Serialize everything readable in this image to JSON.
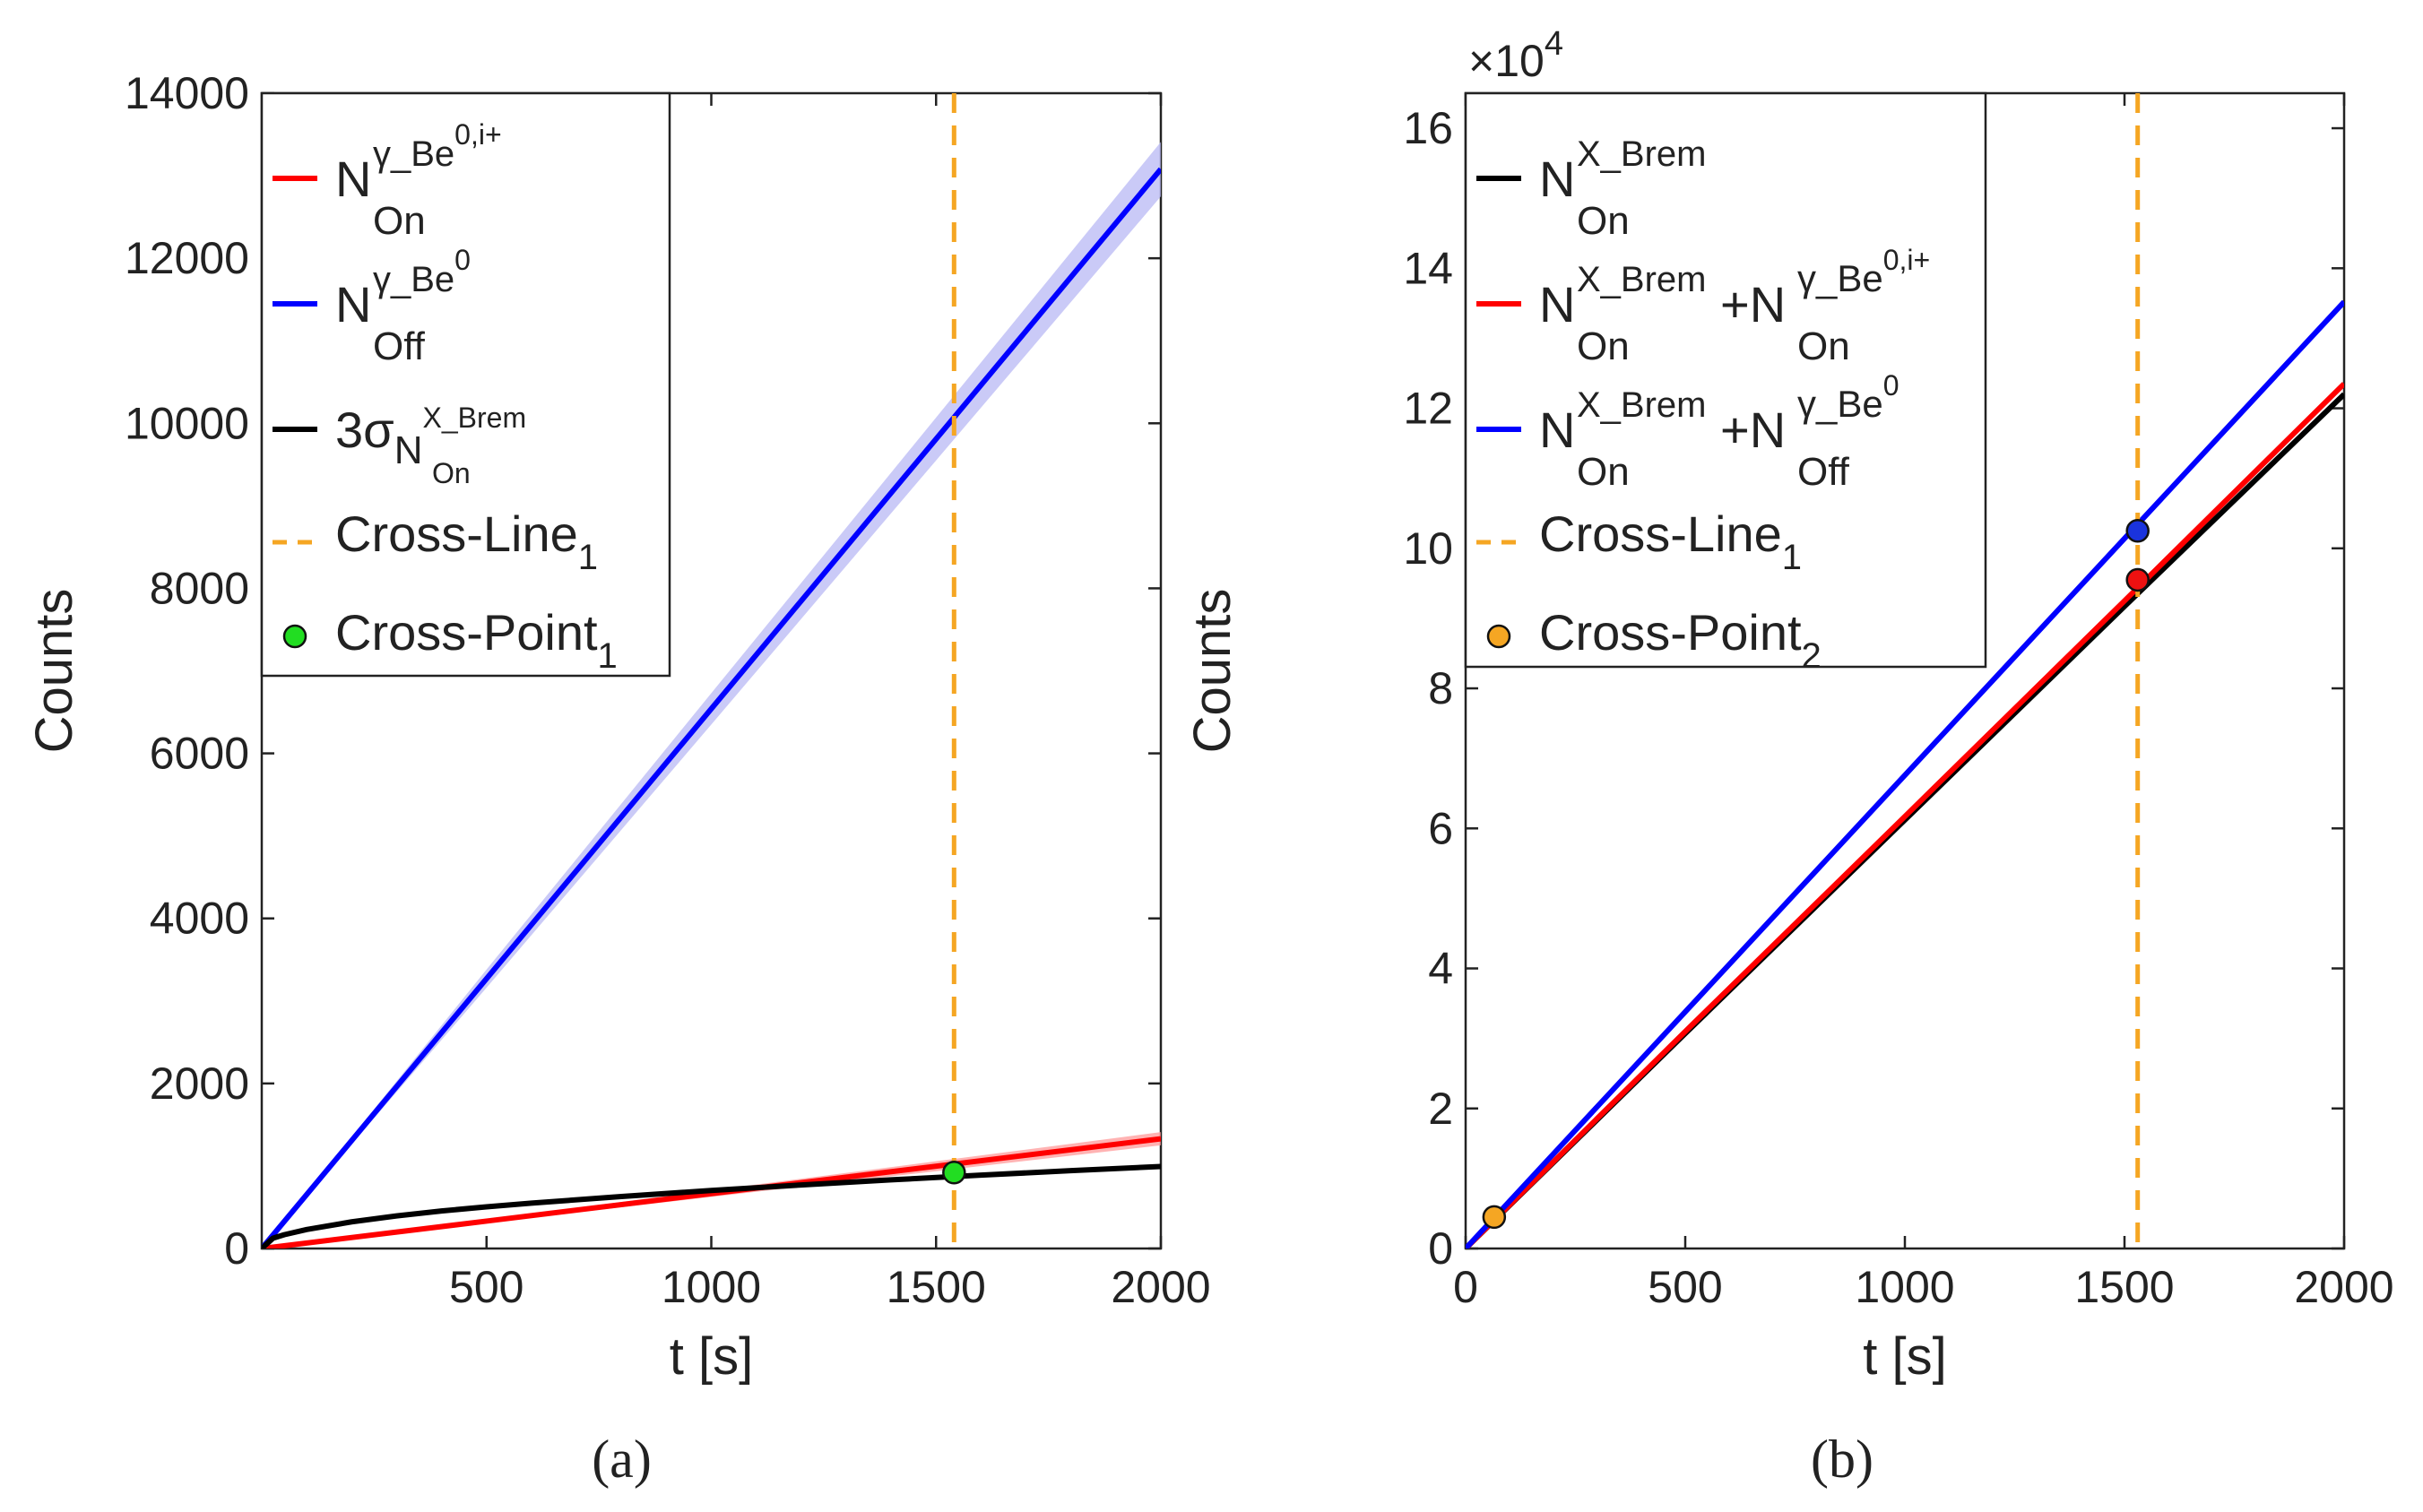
{
  "chart_data": [
    {
      "type": "line",
      "panel_label": "(a)",
      "xlabel": "t [s]",
      "ylabel": "Counts",
      "xlim": [
        0,
        2000
      ],
      "ylim": [
        0,
        14000
      ],
      "xticks": [
        500,
        1000,
        1500,
        2000
      ],
      "yticks": [
        0,
        2000,
        4000,
        6000,
        8000,
        10000,
        12000,
        14000
      ],
      "grid": false,
      "legend_position": "top-left",
      "series": [
        {
          "key": "red",
          "legend": {
            "base": "N",
            "sup": "γ_Be",
            "supsup": "0,i+",
            "sub": "On"
          },
          "color": "#ff0000",
          "band_color": "#ff9a9a",
          "x": [
            0,
            500,
            1000,
            1500,
            2000
          ],
          "y": [
            0,
            332,
            665,
            997,
            1330
          ],
          "band": [
            0,
            20,
            40,
            60,
            80
          ]
        },
        {
          "key": "blue",
          "legend": {
            "base": "N",
            "sup": "γ_Be",
            "supsup": "0",
            "sub": "Off"
          },
          "color": "#0000ff",
          "band_color": "#b8b8f4",
          "x": [
            0,
            500,
            1000,
            1500,
            2000
          ],
          "y": [
            0,
            3270,
            6540,
            9810,
            13080
          ],
          "band": [
            0,
            110,
            190,
            260,
            330
          ]
        },
        {
          "key": "black",
          "legend": {
            "base": "3σ",
            "sub": "N",
            "subsup": "X_Brem",
            "subsub": "On"
          },
          "color": "#000000",
          "x": [
            0,
            25,
            50,
            100,
            200,
            300,
            400,
            500,
            600,
            800,
            1000,
            1200,
            1400,
            1600,
            1800,
            2000
          ],
          "y": [
            0,
            125,
            167,
            230,
            323,
            395,
            455,
            505,
            550,
            630,
            703,
            770,
            832,
            889,
            943,
            994
          ]
        }
      ],
      "cross_line": {
        "label": "Cross-Line",
        "label_sub": "1",
        "x": 1540,
        "color": "#f5a623"
      },
      "cross_points": [
        {
          "label": "Cross-Point",
          "label_sub": "1",
          "x": 1540,
          "y": 920,
          "color": "#22dd22"
        }
      ]
    },
    {
      "type": "line",
      "panel_label": "(b)",
      "xlabel": "t [s]",
      "ylabel": "Counts",
      "multiplier": "×10",
      "multiplier_exp": "4",
      "xlim": [
        0,
        2000
      ],
      "ylim": [
        0,
        16.5
      ],
      "xticks": [
        0,
        500,
        1000,
        1500,
        2000
      ],
      "yticks": [
        0,
        2,
        4,
        6,
        8,
        10,
        12,
        14,
        16
      ],
      "grid": false,
      "legend_position": "top-left",
      "series": [
        {
          "key": "black",
          "legend": {
            "base": "N",
            "sup": "X_Brem",
            "sub": "On"
          },
          "color": "#000000",
          "x": [
            0,
            500,
            1000,
            1500,
            2000
          ],
          "y": [
            0,
            3.07,
            6.12,
            9.17,
            12.2
          ]
        },
        {
          "key": "red",
          "legend": {
            "base": "N",
            "sup": "X_Brem",
            "sub": "On",
            "plus": "+N",
            "sup2": "γ_Be",
            "supsup2": "0,i+",
            "sub2": "On"
          },
          "color": "#ff0000",
          "x": [
            0,
            500,
            1000,
            1500,
            2000
          ],
          "y": [
            0,
            3.1,
            6.17,
            9.25,
            12.35
          ]
        },
        {
          "key": "blue",
          "legend": {
            "base": "N",
            "sup": "X_Brem",
            "sub": "On",
            "plus": "+N",
            "sup2": "γ_Be",
            "supsup2": "0",
            "sub2": "Off"
          },
          "color": "#0000ff",
          "x": [
            0,
            500,
            1000,
            1500,
            2000
          ],
          "y": [
            0,
            3.38,
            6.76,
            10.14,
            13.52
          ]
        }
      ],
      "cross_line": {
        "label": "Cross-Line",
        "label_sub": "1",
        "x": 1530,
        "color": "#f5a623"
      },
      "cross_points": [
        {
          "label": "Cross-Point",
          "label_sub": "2",
          "x": 65,
          "y": 0.45,
          "color": "#f5a623"
        },
        {
          "label": "",
          "x": 1530,
          "y": 10.25,
          "color": "#1a33dd"
        },
        {
          "label": "",
          "x": 1530,
          "y": 9.55,
          "color": "#ee1111"
        }
      ]
    }
  ]
}
